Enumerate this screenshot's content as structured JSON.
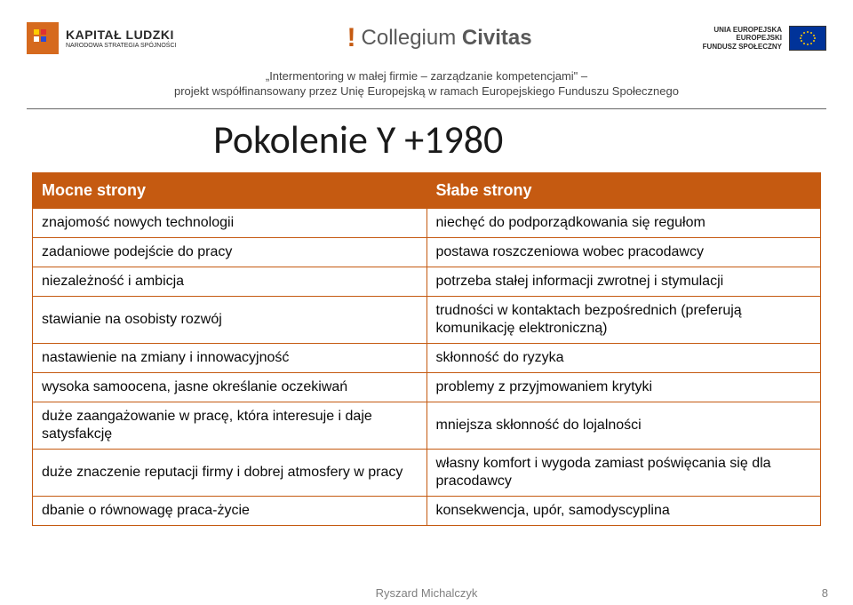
{
  "header": {
    "logo_left": {
      "bold": "KAPITAŁ LUDZKI",
      "small": "NARODOWA STRATEGIA SPÓJNOŚCI"
    },
    "logo_center": {
      "word1": "Collegium",
      "word2": "Civitas"
    },
    "logo_right": {
      "line1": "UNIA EUROPEJSKA",
      "line2": "EUROPEJSKI",
      "line3": "FUNDUSZ SPOŁECZNY"
    }
  },
  "subheader": {
    "line1": "„Intermentoring w małej firmie – zarządzanie kompetencjami\" –",
    "line2": "projekt współfinansowany przez Unię Europejską w ramach Europejskiego Funduszu Społecznego"
  },
  "title": "Pokolenie Y +1980",
  "table": {
    "header_bg": "#c55a11",
    "border_color": "#c55a11",
    "headers": [
      "Mocne strony",
      "Słabe strony"
    ],
    "rows": [
      [
        "znajomość nowych technologii",
        "niechęć do podporządkowania się regułom"
      ],
      [
        "zadaniowe podejście do pracy",
        "postawa roszczeniowa wobec pracodawcy"
      ],
      [
        "niezależność i ambicja",
        "potrzeba stałej informacji zwrotnej i stymulacji"
      ],
      [
        "stawianie na osobisty rozwój",
        "trudności w kontaktach bezpośrednich (preferują komunikację elektroniczną)"
      ],
      [
        "nastawienie na zmiany i innowacyjność",
        "skłonność do ryzyka"
      ],
      [
        "wysoka samoocena, jasne określanie oczekiwań",
        "problemy z przyjmowaniem krytyki"
      ],
      [
        "duże zaangażowanie w pracę, która interesuje i daje satysfakcję",
        "mniejsza skłonność do lojalności"
      ],
      [
        "duże znaczenie reputacji firmy i dobrej atmosfery w pracy",
        "własny komfort i wygoda zamiast poświęcania się dla pracodawcy"
      ],
      [
        "dbanie o równowagę praca-życie",
        "konsekwencja, upór, samodyscyplina"
      ]
    ]
  },
  "footer": {
    "name": "Ryszard Michalczyk",
    "page": "8"
  }
}
